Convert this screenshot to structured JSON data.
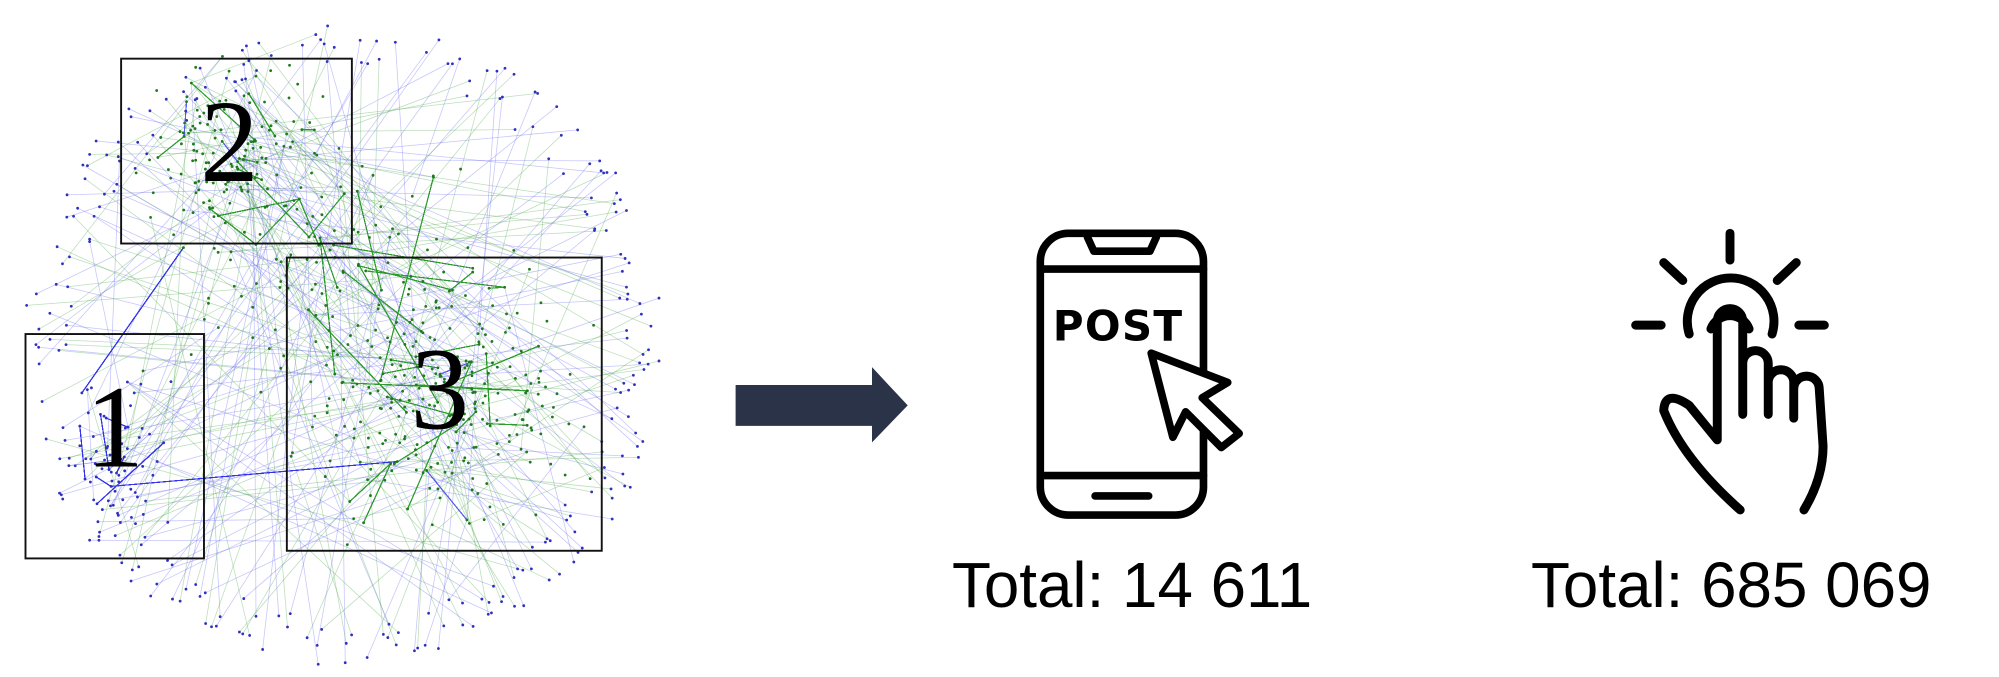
{
  "nodes": [
    {
      "label": "1"
    },
    {
      "label": "2"
    },
    {
      "label": "3"
    }
  ],
  "post_icon": {
    "label": "POST",
    "total": "Total: 14 611"
  },
  "click_icon": {
    "total": "Total: 685 069"
  }
}
